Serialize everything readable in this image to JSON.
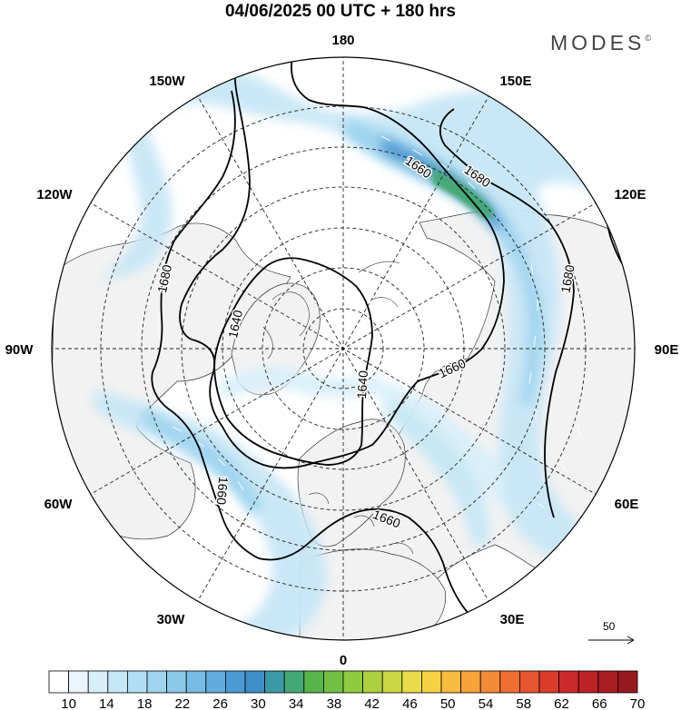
{
  "title": "04/06/2025  00 UTC  + 180 hrs",
  "brand": "MODES",
  "brand_mark": "©",
  "longitude_labels": {
    "lon_180": "180",
    "lon_150E": "150E",
    "lon_120E": "120E",
    "lon_90E": "90E",
    "lon_60E": "60E",
    "lon_30E": "30E",
    "lon_0": "0",
    "lon_30W": "30W",
    "lon_60W": "60W",
    "lon_90W": "90W",
    "lon_120W": "120W",
    "lon_150W": "150W"
  },
  "contour_labels": {
    "c1": "1680",
    "c2": "1680",
    "c3": "1660",
    "c4": "1680",
    "c5": "1640",
    "c6": "1640",
    "c7": "1660",
    "c8": "1660",
    "c9": "1660"
  },
  "reference_vector": "50",
  "colorbar": {
    "levels": [
      10,
      12,
      14,
      16,
      18,
      20,
      22,
      24,
      26,
      28,
      30,
      32,
      34,
      36,
      38,
      40,
      42,
      44,
      46,
      48,
      50,
      52,
      54,
      56,
      58,
      60,
      62,
      64,
      66,
      68,
      70
    ],
    "tick_labels": [
      "10",
      "14",
      "18",
      "22",
      "26",
      "30",
      "34",
      "38",
      "42",
      "46",
      "50",
      "54",
      "58",
      "62",
      "66",
      "70"
    ],
    "colors": [
      "#ffffff",
      "#eaf6fc",
      "#d8eff9",
      "#c6e7f6",
      "#b2def3",
      "#9fd4ef",
      "#8bc8ea",
      "#76bce4",
      "#61acdc",
      "#4b9bd3",
      "#3f8fc8",
      "#3c9aa6",
      "#44a875",
      "#58b54a",
      "#72c043",
      "#8fca3e",
      "#adcf40",
      "#cbd645",
      "#e8dc4a",
      "#f5d245",
      "#f7bb3f",
      "#f6a33a",
      "#f38a35",
      "#ee6f31",
      "#e5552e",
      "#da3c2c",
      "#cc2a2a",
      "#bb2327",
      "#aa1d23",
      "#971a20"
    ]
  }
}
